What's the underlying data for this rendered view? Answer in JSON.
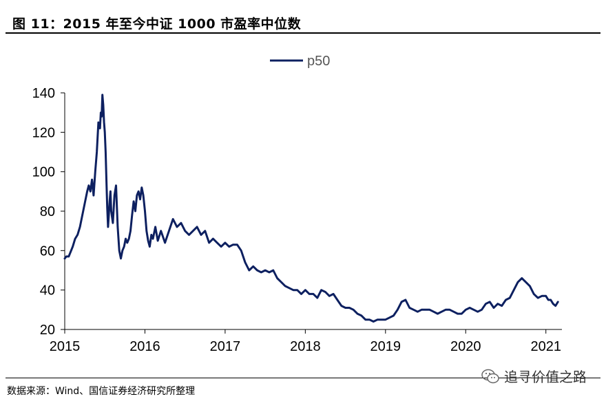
{
  "header": {
    "title": "图 11：2015 年至今中证 1000 市盈率中位数"
  },
  "footer": {
    "source": "数据来源：Wind、国信证券经济研究所整理",
    "watermark": "追寻价值之路"
  },
  "colors": {
    "series": "#0d2060",
    "axis": "#000000"
  },
  "icons": {
    "watermark": "wechat-icon"
  },
  "chart_data": {
    "type": "line",
    "title": "",
    "xlabel": "",
    "ylabel": "",
    "legend_position": "top-center",
    "grid": false,
    "xlim": [
      2015.0,
      2021.2
    ],
    "ylim": [
      20,
      140
    ],
    "y_ticks": [
      20,
      40,
      60,
      80,
      100,
      120,
      140
    ],
    "x_ticks": [
      "2015",
      "2016",
      "2017",
      "2018",
      "2019",
      "2020",
      "2021"
    ],
    "series": [
      {
        "name": "p50",
        "x": [
          2015.0,
          2015.02,
          2015.05,
          2015.08,
          2015.1,
          2015.13,
          2015.16,
          2015.19,
          2015.22,
          2015.25,
          2015.28,
          2015.3,
          2015.32,
          2015.34,
          2015.36,
          2015.38,
          2015.4,
          2015.42,
          2015.44,
          2015.45,
          2015.46,
          2015.47,
          2015.48,
          2015.49,
          2015.5,
          2015.51,
          2015.52,
          2015.53,
          2015.54,
          2015.55,
          2015.56,
          2015.57,
          2015.58,
          2015.6,
          2015.62,
          2015.64,
          2015.66,
          2015.68,
          2015.7,
          2015.72,
          2015.74,
          2015.76,
          2015.78,
          2015.8,
          2015.82,
          2015.84,
          2015.86,
          2015.88,
          2015.9,
          2015.92,
          2015.94,
          2015.96,
          2015.98,
          2016.0,
          2016.02,
          2016.04,
          2016.06,
          2016.08,
          2016.1,
          2016.13,
          2016.16,
          2016.2,
          2016.25,
          2016.3,
          2016.35,
          2016.4,
          2016.45,
          2016.5,
          2016.55,
          2016.6,
          2016.65,
          2016.7,
          2016.75,
          2016.8,
          2016.85,
          2016.9,
          2016.95,
          2017.0,
          2017.05,
          2017.1,
          2017.15,
          2017.2,
          2017.25,
          2017.3,
          2017.35,
          2017.4,
          2017.45,
          2017.5,
          2017.55,
          2017.6,
          2017.65,
          2017.7,
          2017.75,
          2017.8,
          2017.85,
          2017.9,
          2017.95,
          2018.0,
          2018.05,
          2018.1,
          2018.15,
          2018.2,
          2018.25,
          2018.3,
          2018.35,
          2018.4,
          2018.45,
          2018.5,
          2018.55,
          2018.6,
          2018.65,
          2018.7,
          2018.75,
          2018.8,
          2018.85,
          2018.9,
          2018.95,
          2019.0,
          2019.05,
          2019.1,
          2019.15,
          2019.2,
          2019.25,
          2019.3,
          2019.35,
          2019.4,
          2019.45,
          2019.5,
          2019.55,
          2019.6,
          2019.65,
          2019.7,
          2019.75,
          2019.8,
          2019.85,
          2019.9,
          2019.95,
          2020.0,
          2020.05,
          2020.1,
          2020.15,
          2020.2,
          2020.25,
          2020.3,
          2020.35,
          2020.4,
          2020.45,
          2020.5,
          2020.55,
          2020.6,
          2020.65,
          2020.7,
          2020.75,
          2020.8,
          2020.85,
          2020.9,
          2020.95,
          2021.0,
          2021.03,
          2021.06,
          2021.09,
          2021.12,
          2021.15
        ],
        "values": [
          56,
          57,
          57,
          60,
          62,
          66,
          68,
          72,
          78,
          84,
          90,
          93,
          90,
          96,
          88,
          100,
          110,
          125,
          122,
          130,
          128,
          139,
          134,
          125,
          120,
          110,
          95,
          82,
          72,
          78,
          85,
          90,
          80,
          74,
          88,
          93,
          72,
          60,
          56,
          60,
          62,
          66,
          64,
          66,
          70,
          78,
          85,
          80,
          88,
          90,
          86,
          92,
          88,
          80,
          70,
          65,
          62,
          68,
          66,
          72,
          65,
          70,
          64,
          70,
          76,
          72,
          74,
          70,
          68,
          70,
          72,
          68,
          70,
          64,
          66,
          64,
          62,
          64,
          62,
          63,
          63,
          60,
          54,
          50,
          52,
          50,
          49,
          50,
          49,
          50,
          46,
          44,
          42,
          41,
          40,
          40,
          38,
          40,
          38,
          38,
          36,
          40,
          39,
          37,
          38,
          35,
          32,
          31,
          31,
          30,
          28,
          27,
          25,
          25,
          24,
          25,
          25,
          25,
          26,
          27,
          30,
          34,
          35,
          31,
          30,
          29,
          30,
          30,
          30,
          29,
          28,
          29,
          30,
          30,
          29,
          28,
          28,
          30,
          31,
          30,
          29,
          30,
          33,
          34,
          31,
          33,
          32,
          35,
          36,
          40,
          44,
          46,
          44,
          42,
          38,
          36,
          37,
          37,
          35,
          35,
          33,
          32,
          34
        ]
      }
    ]
  }
}
